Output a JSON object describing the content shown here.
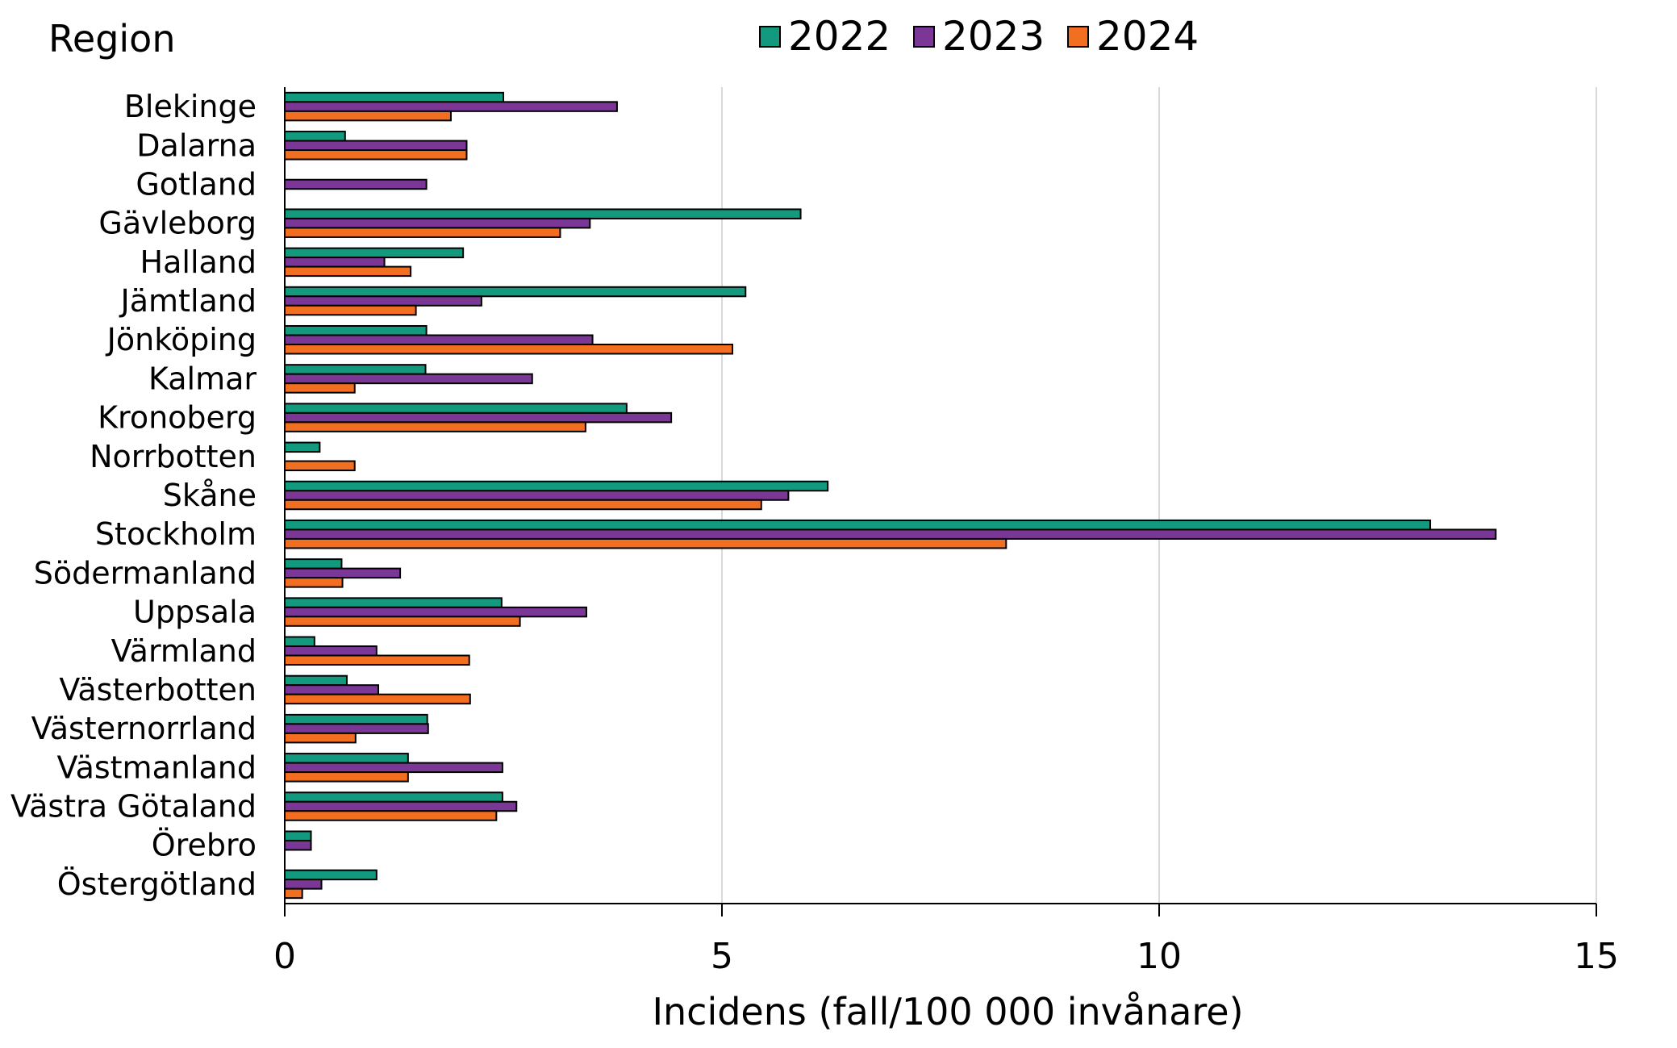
{
  "chart_data": {
    "type": "bar",
    "orientation": "horizontal",
    "ylabel": "Region",
    "xlabel": "Incidens (fall/100 000 invånare)",
    "xlim": [
      0,
      15
    ],
    "xticks": [
      "0",
      "5",
      "10",
      "15"
    ],
    "grid": "vertical",
    "legend_position": "top-center",
    "categories": [
      "Blekinge",
      "Dalarna",
      "Gotland",
      "Gävleborg",
      "Halland",
      "Jämtland",
      "Jönköping",
      "Kalmar",
      "Kronoberg",
      "Norrbotten",
      "Skåne",
      "Stockholm",
      "Södermanland",
      "Uppsala",
      "Värmland",
      "Västerbotten",
      "Västernorrland",
      "Västmanland",
      "Västra Götaland",
      "Örebro",
      "Östergötland"
    ],
    "series": [
      {
        "name": "2022",
        "color": "#139a7e",
        "values": [
          2.5,
          0.69,
          0,
          5.9,
          2.04,
          5.27,
          1.62,
          1.61,
          3.91,
          0.4,
          6.21,
          13.1,
          0.65,
          2.48,
          0.34,
          0.71,
          1.63,
          1.41,
          2.49,
          0.3,
          1.05
        ]
      },
      {
        "name": "2023",
        "color": "#7a3795",
        "values": [
          3.8,
          2.08,
          1.62,
          3.49,
          1.14,
          2.25,
          3.52,
          2.83,
          4.42,
          0,
          5.76,
          13.85,
          1.32,
          3.45,
          1.05,
          1.07,
          1.64,
          2.49,
          2.65,
          0.3,
          0.42
        ]
      },
      {
        "name": "2024",
        "color": "#f26f21",
        "values": [
          1.9,
          2.08,
          0,
          3.15,
          1.44,
          1.5,
          5.12,
          0.8,
          3.44,
          0.8,
          5.45,
          8.25,
          0.66,
          2.69,
          2.11,
          2.12,
          0.81,
          1.41,
          2.42,
          0,
          0.2
        ]
      }
    ]
  }
}
